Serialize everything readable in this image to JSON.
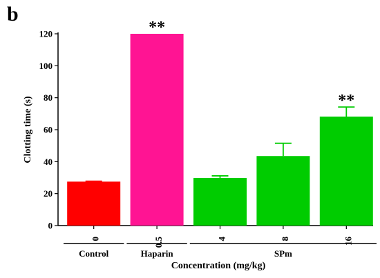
{
  "panel_label": "b",
  "chart_data": {
    "type": "bar",
    "xlabel": "Concentration (mg/kg)",
    "ylabel": "Clotting time (s)",
    "ylim": [
      0,
      120
    ],
    "yticks": [
      0,
      20,
      40,
      60,
      80,
      100,
      120
    ],
    "categories": [
      "0",
      "0.5",
      "4",
      "8",
      "16"
    ],
    "values": [
      27.5,
      120,
      29.8,
      43.5,
      68.2
    ],
    "errors": [
      0.3,
      0,
      1.3,
      8,
      6
    ],
    "colors": [
      "#ff0000",
      "#ff1493",
      "#00cc00",
      "#00cc00",
      "#00cc00"
    ],
    "significance": [
      "",
      "**",
      "",
      "",
      "**"
    ],
    "groups": [
      {
        "label": "Control",
        "bars": [
          0
        ]
      },
      {
        "label": "Haparin",
        "bars": [
          1
        ]
      },
      {
        "label": "SPm",
        "bars": [
          2,
          3,
          4
        ]
      }
    ],
    "grid": false,
    "legend": "none"
  }
}
